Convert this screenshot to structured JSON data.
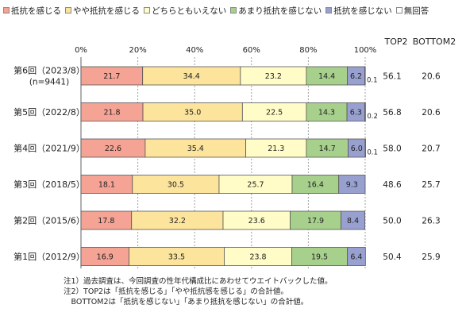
{
  "legend": [
    {
      "label": "抵抗を感じる",
      "color": "#F4A394"
    },
    {
      "label": "やや抵抗を感じる",
      "color": "#FCE49C"
    },
    {
      "label": "どちらともいえない",
      "color": "#FFFCC8"
    },
    {
      "label": "あまり抵抗を感じない",
      "color": "#A7D08C"
    },
    {
      "label": "抵抗を感じない",
      "color": "#98A0D0"
    },
    {
      "label": "無回答",
      "color": "#FFFFFF"
    }
  ],
  "chart_data": {
    "type": "bar",
    "orientation": "horizontal",
    "stacked": true,
    "xlim": [
      0,
      100
    ],
    "xticks": [
      "0%",
      "20%",
      "40%",
      "60%",
      "80%",
      "100%"
    ],
    "categories": [
      {
        "line1": "第6回（2023/8）",
        "line2": "(n=9441)"
      },
      {
        "line1": "第5回（2022/8）",
        "line2": ""
      },
      {
        "line1": "第4回（2021/9）",
        "line2": ""
      },
      {
        "line1": "第3回（2018/5）",
        "line2": ""
      },
      {
        "line1": "第2回（2015/6）",
        "line2": ""
      },
      {
        "line1": "第1回（2012/9）",
        "line2": ""
      }
    ],
    "series": [
      {
        "name": "抵抗を感じる",
        "color": "#F4A394",
        "values": [
          21.7,
          21.8,
          22.6,
          18.1,
          17.8,
          16.9
        ]
      },
      {
        "name": "やや抵抗を感じる",
        "color": "#FCE49C",
        "values": [
          34.4,
          35.0,
          35.4,
          30.5,
          32.2,
          33.5
        ]
      },
      {
        "name": "どちらともいえない",
        "color": "#FFFCC8",
        "values": [
          23.2,
          22.5,
          21.3,
          25.7,
          23.6,
          23.8
        ]
      },
      {
        "name": "あまり抵抗を感じない",
        "color": "#A7D08C",
        "values": [
          14.4,
          14.3,
          14.7,
          16.4,
          17.9,
          19.5
        ]
      },
      {
        "name": "抵抗を感じない",
        "color": "#98A0D0",
        "values": [
          6.2,
          6.3,
          6.0,
          9.3,
          8.4,
          6.4
        ]
      },
      {
        "name": "無回答",
        "color": "#FFFFFF",
        "values": [
          0.1,
          0.2,
          0.1,
          0,
          0,
          0
        ]
      }
    ],
    "value_labels": [
      [
        "21.7",
        "34.4",
        "23.2",
        "14.4",
        "6.2",
        "0.1"
      ],
      [
        "21.8",
        "35.0",
        "22.5",
        "14.3",
        "6.3",
        "0.2"
      ],
      [
        "22.6",
        "35.4",
        "21.3",
        "14.7",
        "6.0",
        "0.1"
      ],
      [
        "18.1",
        "30.5",
        "25.7",
        "16.4",
        "9.3",
        ""
      ],
      [
        "17.8",
        "32.2",
        "23.6",
        "17.9",
        "8.4",
        ""
      ],
      [
        "16.9",
        "33.5",
        "23.8",
        "19.5",
        "6.4",
        ""
      ]
    ],
    "summary_columns": {
      "headers": [
        "TOP2",
        "BOTTOM2"
      ],
      "top2": [
        "56.1",
        "56.8",
        "58.0",
        "48.6",
        "50.0",
        "50.4"
      ],
      "bottom2": [
        "20.6",
        "20.6",
        "20.7",
        "25.7",
        "26.3",
        "25.9"
      ]
    }
  },
  "notes": [
    "注1）過去調査は、今回調査の性年代構成比にあわせてウエイトバックした値。",
    "注2）TOP2は「抵抗を感じる」「やや抵抗感を感じる」の合計値。",
    "　BOTTOM2は「抵抗を感じない」「あまり抵抗を感じない」の合計値。"
  ]
}
